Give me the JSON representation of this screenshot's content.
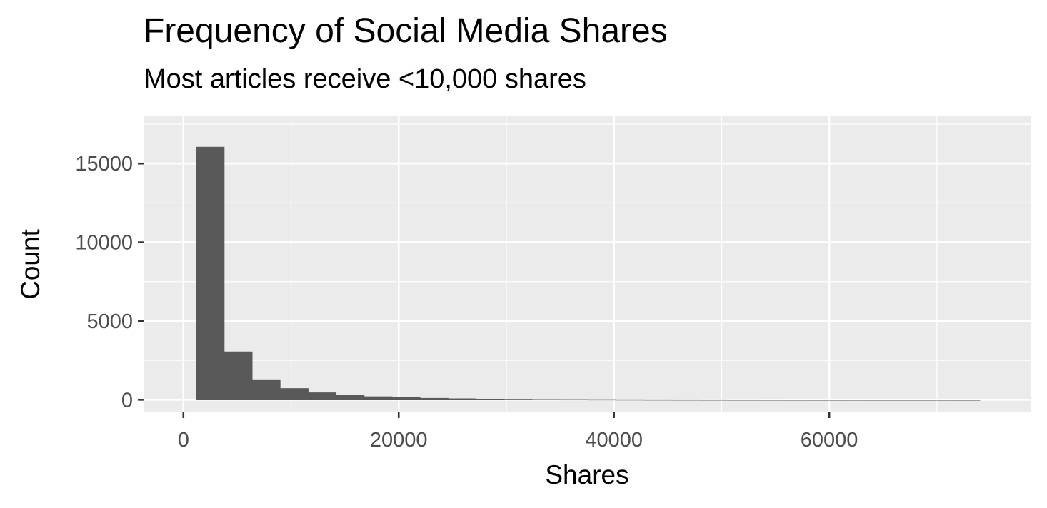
{
  "chart_data": {
    "type": "bar",
    "title": "Frequency of Social Media Shares",
    "subtitle": "Most articles receive <10,000 shares",
    "xlabel": "Shares",
    "ylabel": "Count",
    "xlim": [
      -3700,
      78700
    ],
    "ylim": [
      -800,
      18000
    ],
    "x_ticks": [
      0,
      20000,
      40000,
      60000
    ],
    "x_tick_labels": [
      "0",
      "20000",
      "40000",
      "60000"
    ],
    "y_ticks": [
      0,
      5000,
      10000,
      15000
    ],
    "y_tick_labels": [
      "0",
      "5000",
      "10000",
      "15000"
    ],
    "bin_width": 2600,
    "bins": [
      {
        "x0": 1200,
        "x1": 3800,
        "count": 16050
      },
      {
        "x0": 3800,
        "x1": 6400,
        "count": 3050
      },
      {
        "x0": 6400,
        "x1": 9000,
        "count": 1280
      },
      {
        "x0": 9000,
        "x1": 11600,
        "count": 720
      },
      {
        "x0": 11600,
        "x1": 14200,
        "count": 450
      },
      {
        "x0": 14200,
        "x1": 16800,
        "count": 300
      },
      {
        "x0": 16800,
        "x1": 19400,
        "count": 200
      },
      {
        "x0": 19400,
        "x1": 22000,
        "count": 140
      },
      {
        "x0": 22000,
        "x1": 24600,
        "count": 100
      },
      {
        "x0": 24600,
        "x1": 27200,
        "count": 70
      },
      {
        "x0": 27200,
        "x1": 29800,
        "count": 50
      },
      {
        "x0": 29800,
        "x1": 32400,
        "count": 40
      },
      {
        "x0": 32400,
        "x1": 35000,
        "count": 30
      },
      {
        "x0": 35000,
        "x1": 37600,
        "count": 25
      },
      {
        "x0": 37600,
        "x1": 40200,
        "count": 20
      },
      {
        "x0": 40200,
        "x1": 42800,
        "count": 15
      },
      {
        "x0": 42800,
        "x1": 45400,
        "count": 12
      },
      {
        "x0": 45400,
        "x1": 48000,
        "count": 10
      },
      {
        "x0": 48000,
        "x1": 50600,
        "count": 8
      },
      {
        "x0": 50600,
        "x1": 53200,
        "count": 6
      },
      {
        "x0": 53200,
        "x1": 55800,
        "count": 5
      },
      {
        "x0": 55800,
        "x1": 58400,
        "count": 4
      },
      {
        "x0": 58400,
        "x1": 61000,
        "count": 3
      },
      {
        "x0": 61000,
        "x1": 63600,
        "count": 3
      },
      {
        "x0": 63600,
        "x1": 66200,
        "count": 2
      },
      {
        "x0": 66200,
        "x1": 68800,
        "count": 2
      },
      {
        "x0": 68800,
        "x1": 71400,
        "count": 2
      },
      {
        "x0": 71400,
        "x1": 74000,
        "count": 1
      }
    ],
    "grid": true,
    "colors": {
      "panel_background": "#ebebeb",
      "grid_major": "#ffffff",
      "grid_minor": "#ffffff",
      "bar_fill": "#595959",
      "tick_text": "#4d4d4d",
      "axis_tick": "#333333"
    }
  }
}
